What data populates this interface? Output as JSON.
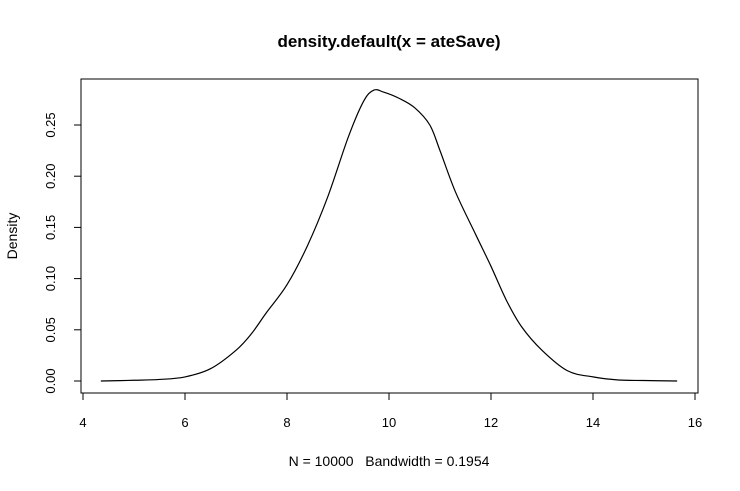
{
  "chart_data": {
    "type": "line",
    "title": "density.default(x = ateSave)",
    "xlabel": "N = 10000   Bandwidth = 0.1954",
    "ylabel": "Density",
    "xlim": [
      4.4,
      15.65
    ],
    "ylim": [
      0,
      0.284
    ],
    "xticks": [
      4,
      6,
      8,
      10,
      12,
      14,
      16
    ],
    "yticks": [
      0.0,
      0.05,
      0.1,
      0.15,
      0.2,
      0.25
    ],
    "xtick_labels": [
      "4",
      "6",
      "8",
      "10",
      "12",
      "14",
      "16"
    ],
    "ytick_labels": [
      "0.00",
      "0.05",
      "0.10",
      "0.15",
      "0.20",
      "0.25"
    ],
    "grid": false,
    "series": [
      {
        "x": [
          4.35,
          5.0,
          5.5,
          6.0,
          6.5,
          7.0,
          7.3,
          7.6,
          8.0,
          8.4,
          8.8,
          9.2,
          9.5,
          9.7,
          9.9,
          10.2,
          10.5,
          10.8,
          11.0,
          11.3,
          11.7,
          12.0,
          12.3,
          12.6,
          13.0,
          13.5,
          14.0,
          14.5,
          15.0,
          15.65
        ],
        "y": [
          0.0,
          0.0007,
          0.0015,
          0.004,
          0.012,
          0.03,
          0.046,
          0.067,
          0.094,
          0.132,
          0.18,
          0.238,
          0.273,
          0.284,
          0.282,
          0.276,
          0.267,
          0.25,
          0.225,
          0.185,
          0.143,
          0.112,
          0.079,
          0.053,
          0.03,
          0.01,
          0.004,
          0.001,
          0.0005,
          0.0
        ]
      }
    ]
  }
}
